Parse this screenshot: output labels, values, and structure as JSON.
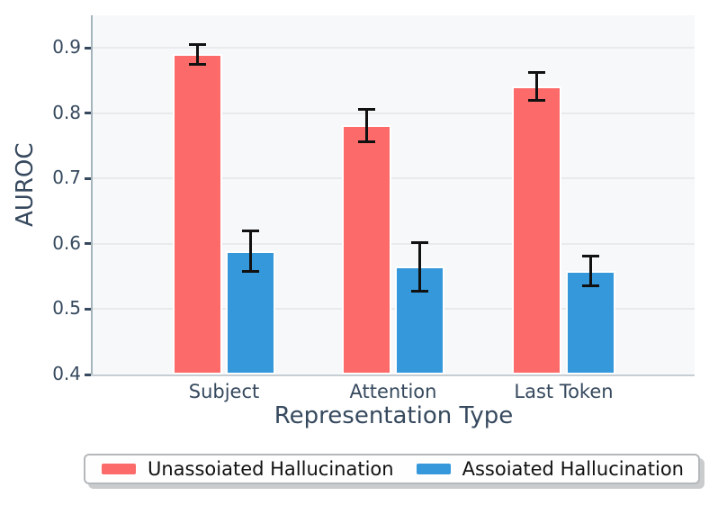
{
  "figure": {
    "background": "#ffffff",
    "plot_background": "#f6f8fa",
    "grid_color": "#e8eaec",
    "left_spine_color": "#a6b4bd",
    "bottom_spine_color": "#c6ced4",
    "axis_text_color": "#36495e",
    "legend_text_color": "#111111",
    "errorbar_color": "#111111"
  },
  "chart_data": {
    "type": "bar",
    "title": "",
    "xlabel": "Representation Type",
    "ylabel": "AUROC",
    "categories": [
      "Subject",
      "Attention",
      "Last Token"
    ],
    "series": [
      {
        "name": "Unassoiated Hallucination",
        "color": "#fc6a6a",
        "values": [
          0.89,
          0.781,
          0.841
        ],
        "errors": [
          0.015,
          0.025,
          0.021
        ]
      },
      {
        "name": "Assoiated Hallucination",
        "color": "#3498db",
        "values": [
          0.589,
          0.565,
          0.558
        ],
        "errors": [
          0.031,
          0.037,
          0.023
        ]
      }
    ],
    "ylim": [
      0.4,
      0.95
    ],
    "yticks": [
      0.4,
      0.5,
      0.6,
      0.7,
      0.8,
      0.9
    ],
    "grid": "horizontal",
    "error_bars": true,
    "legend_position": "bottom"
  }
}
